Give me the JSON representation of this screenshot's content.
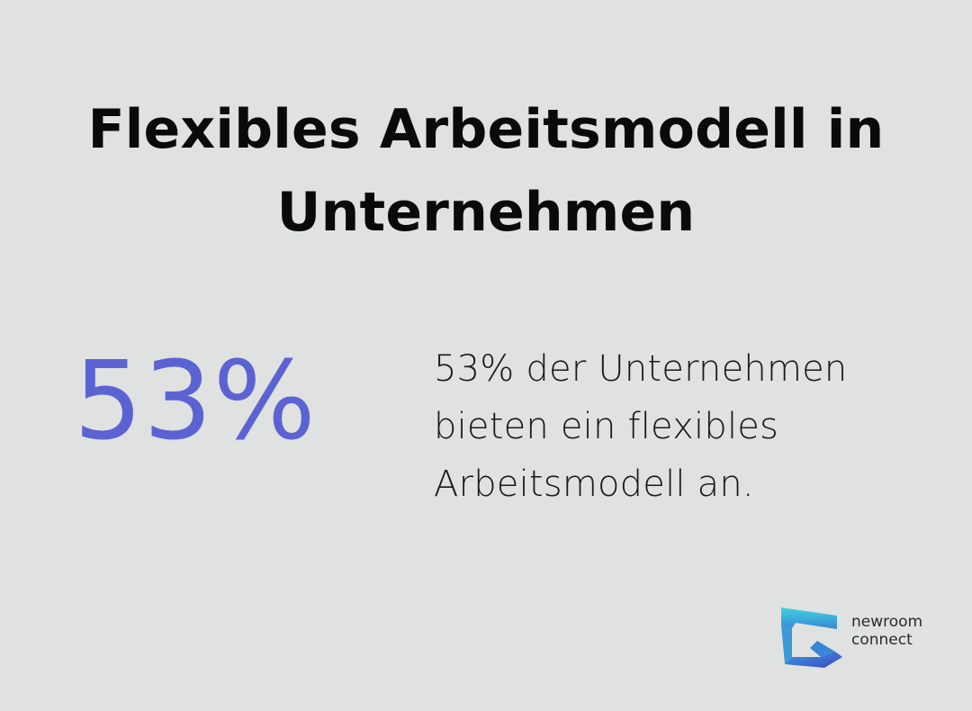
{
  "title": "Flexibles Arbeitsmodell in Unternehmen",
  "stat": {
    "value": "53%",
    "description": "53% der Unternehmen bieten ein flexibles Arbeitsmodell an."
  },
  "brand": {
    "name_line1": "newroom",
    "name_line2": "connect",
    "icon": "newroom-connect-logo-icon"
  },
  "colors": {
    "background": "#e0e1e1",
    "accent": "#5b63d3",
    "text": "#0a0a0a",
    "logo_cyan": "#3fd0dc",
    "logo_blue": "#3c4fc4"
  }
}
